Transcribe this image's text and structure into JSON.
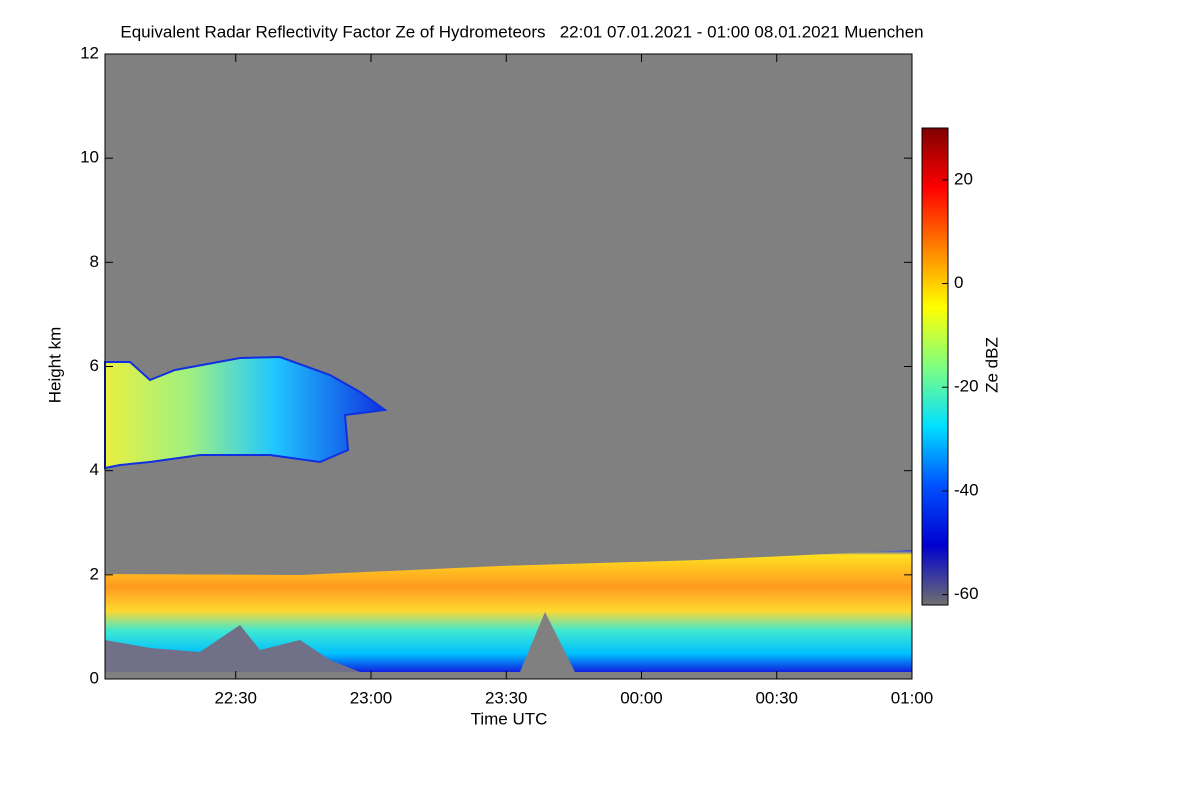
{
  "chart_data": {
    "type": "heatmap",
    "title": "Equivalent Radar Reflectivity Factor Ze of Hydrometeors   22:01 07.01.2021 - 01:00 08.01.2021 Muenchen",
    "x_label": "Time UTC",
    "y_label": "Height km",
    "xlim": [
      1,
      180
    ],
    "xticks": [
      {
        "value": 30,
        "label": "22:30"
      },
      {
        "value": 60,
        "label": "23:00"
      },
      {
        "value": 90,
        "label": "23:30"
      },
      {
        "value": 120,
        "label": "00:00"
      },
      {
        "value": 150,
        "label": "00:30"
      },
      {
        "value": 180,
        "label": "01:00"
      }
    ],
    "ylim": [
      0,
      12
    ],
    "yticks": [
      0,
      2,
      4,
      6,
      8,
      10,
      12
    ],
    "background": "#808080",
    "colorbar": {
      "label": "Ze dBZ",
      "lim": [
        -62,
        30
      ],
      "ticks": [
        -60,
        -40,
        -20,
        0,
        20
      ],
      "colors": [
        "#707070",
        "#0000d0",
        "#0050ff",
        "#00e0ff",
        "#80ff80",
        "#ffff00",
        "#ff8000",
        "#ff0000",
        "#800000"
      ]
    }
  }
}
